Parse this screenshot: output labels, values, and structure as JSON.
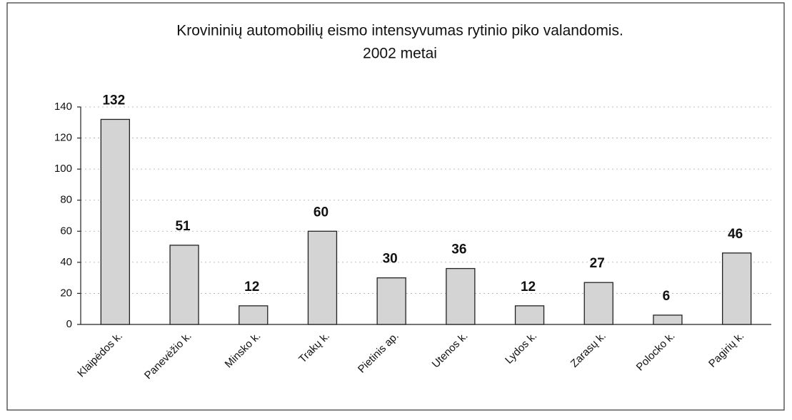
{
  "chart_data": {
    "type": "bar",
    "title": [
      "Krovininių automobilių eismo intensyvumas rytinio piko valandomis.",
      "2002 metai"
    ],
    "categories": [
      "Klaipėdos k.",
      "Panevėžio k.",
      "Minsko k.",
      "Trakų k.",
      "Pietinis ap.",
      "Utenos k.",
      "Lydos k.",
      "Zarasų k.",
      "Polocko k.",
      "Pagirių k."
    ],
    "values": [
      132,
      51,
      12,
      60,
      30,
      36,
      12,
      27,
      6,
      46
    ],
    "color": "#d4d4d4",
    "ylim": [
      0,
      140
    ],
    "yticks": [
      0,
      20,
      40,
      60,
      80,
      100,
      120,
      140
    ],
    "grid": true
  }
}
